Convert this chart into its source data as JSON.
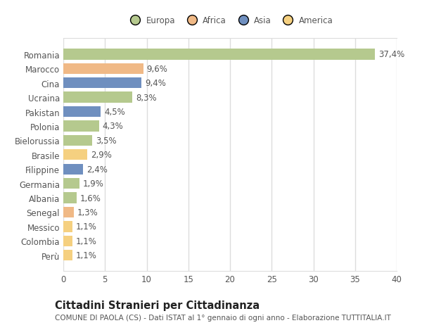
{
  "categories": [
    "Romania",
    "Marocco",
    "Cina",
    "Ucraina",
    "Pakistan",
    "Polonia",
    "Bielorussia",
    "Brasile",
    "Filippine",
    "Germania",
    "Albania",
    "Senegal",
    "Messico",
    "Colombia",
    "Perù"
  ],
  "values": [
    37.4,
    9.6,
    9.4,
    8.3,
    4.5,
    4.3,
    3.5,
    2.9,
    2.4,
    1.9,
    1.6,
    1.3,
    1.1,
    1.1,
    1.1
  ],
  "labels": [
    "37,4%",
    "9,6%",
    "9,4%",
    "8,3%",
    "4,5%",
    "4,3%",
    "3,5%",
    "2,9%",
    "2,4%",
    "1,9%",
    "1,6%",
    "1,3%",
    "1,1%",
    "1,1%",
    "1,1%"
  ],
  "colors": [
    "#b5c98e",
    "#f0b986",
    "#6f8fbf",
    "#b5c98e",
    "#6f8fbf",
    "#b5c98e",
    "#b5c98e",
    "#f5d080",
    "#6f8fbf",
    "#b5c98e",
    "#b5c98e",
    "#f0b986",
    "#f5d080",
    "#f5d080",
    "#f5d080"
  ],
  "continent_colors": {
    "Europa": "#b5c98e",
    "Africa": "#f0b986",
    "Asia": "#6f8fbf",
    "America": "#f5d080"
  },
  "legend_labels": [
    "Europa",
    "Africa",
    "Asia",
    "America"
  ],
  "xlim": [
    0,
    40
  ],
  "xticks": [
    0,
    5,
    10,
    15,
    20,
    25,
    30,
    35,
    40
  ],
  "title": "Cittadini Stranieri per Cittadinanza",
  "subtitle": "COMUNE DI PAOLA (CS) - Dati ISTAT al 1° gennaio di ogni anno - Elaborazione TUTTITALIA.IT",
  "bg_color": "#ffffff",
  "plot_bg_color": "#ffffff",
  "grid_color": "#dddddd",
  "bar_height": 0.75,
  "label_fontsize": 8.5,
  "ytick_fontsize": 8.5,
  "xtick_fontsize": 8.5,
  "title_fontsize": 10.5,
  "subtitle_fontsize": 7.5,
  "text_color": "#555555",
  "title_color": "#222222"
}
